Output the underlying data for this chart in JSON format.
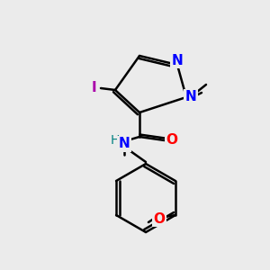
{
  "background_color": "#ebebeb",
  "atom_colors": {
    "N": "#0000ff",
    "O": "#ff0000",
    "I": "#aa00aa",
    "H": "#008080",
    "C": "#000000"
  },
  "bond_lw": 1.8,
  "font_size": 11
}
